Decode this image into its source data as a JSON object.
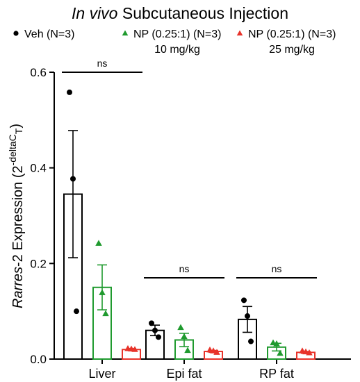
{
  "chart_data": {
    "type": "bar",
    "title_italic": "In vivo",
    "title_rest": " Subcutaneous Injection",
    "ylabel_italic": "Rarres",
    "ylabel_rest": "-2 Expression (2",
    "ylabel_sup": "-deltaC",
    "ylabel_sub": "T",
    "ylabel_close": ")",
    "ylim": [
      0,
      0.6
    ],
    "yticks": [
      "0.0",
      "0.2",
      "0.4",
      "0.6"
    ],
    "categories": [
      "Liver",
      "Epi fat",
      "RP fat"
    ],
    "series": [
      {
        "name": "Veh (N=3)",
        "legend_line2": "",
        "color": "#000000",
        "marker": "circle",
        "values": [
          0.345,
          0.06,
          0.083
        ],
        "sem": [
          0.133,
          0.011,
          0.027
        ],
        "points": [
          [
            0.558,
            0.377,
            0.1
          ],
          [
            0.075,
            0.06,
            0.046
          ],
          [
            0.123,
            0.09,
            0.037
          ]
        ]
      },
      {
        "name": "NP (0.25:1) (N=3)",
        "legend_line2": "10 mg/kg",
        "color": "#1f9a2e",
        "marker": "triangle",
        "values": [
          0.15,
          0.04,
          0.025
        ],
        "sem": [
          0.047,
          0.014,
          0.008
        ],
        "points": [
          [
            0.242,
            0.139,
            0.095
          ],
          [
            0.066,
            0.047,
            0.018
          ],
          [
            0.034,
            0.032,
            0.012
          ]
        ]
      },
      {
        "name": "NP (0.25:1) (N=3)",
        "legend_line2": "25 mg/kg",
        "color": "#e8332a",
        "marker": "triangle",
        "values": [
          0.02,
          0.016,
          0.014
        ],
        "sem": [
          0.002,
          0.002,
          0.002
        ],
        "points": [
          [
            0.022,
            0.021,
            0.02
          ],
          [
            0.019,
            0.017,
            0.014
          ],
          [
            0.017,
            0.015,
            0.013
          ]
        ]
      }
    ],
    "significance": [
      {
        "label": "ns",
        "category": 0,
        "y": 0.6
      },
      {
        "label": "ns",
        "category": 1,
        "y": 0.17
      },
      {
        "label": "ns",
        "category": 2,
        "y": 0.17
      }
    ]
  }
}
